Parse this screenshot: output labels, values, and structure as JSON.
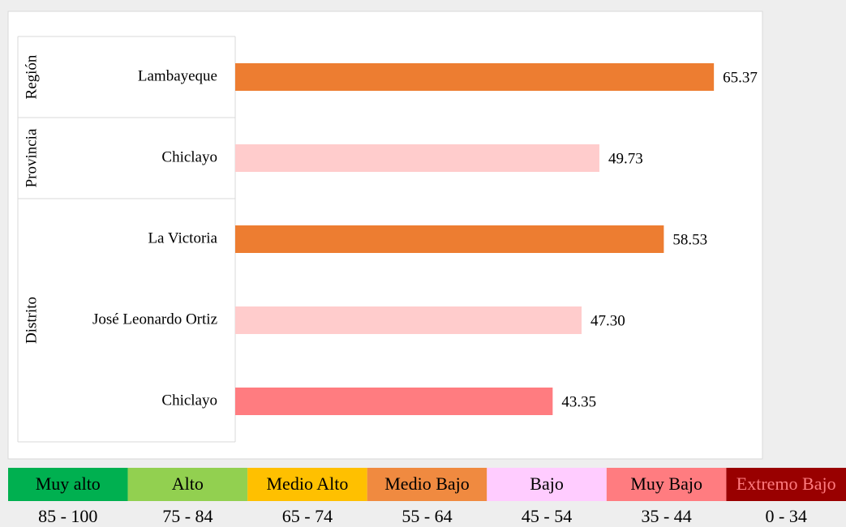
{
  "chart_data": {
    "type": "bar",
    "orientation": "horizontal",
    "categories": [
      "Lambayeque",
      "Chiclayo",
      "La Victoria",
      "José Leonardo Ortiz",
      "Chiclayo"
    ],
    "groups": [
      {
        "label": "Región",
        "size": 1
      },
      {
        "label": "Provincia",
        "size": 1
      },
      {
        "label": "Distrito",
        "size": 3
      }
    ],
    "values": [
      65.37,
      49.73,
      58.53,
      47.3,
      43.35
    ],
    "value_labels": [
      "65.37",
      "49.73",
      "58.53",
      "47.30",
      "43.35"
    ],
    "colors": [
      "#ed7d31",
      "#ffcccc",
      "#ed7d31",
      "#ffcccc",
      "#ff7c80"
    ],
    "xlim": [
      0,
      72
    ]
  },
  "legend_scale": [
    {
      "label": "Muy alto",
      "range": "85 - 100",
      "color": "#00b050",
      "text_color": "#000000"
    },
    {
      "label": "Alto",
      "range": "75 - 84",
      "color": "#92d050",
      "text_color": "#000000"
    },
    {
      "label": "Medio Alto",
      "range": "65 - 74",
      "color": "#ffc000",
      "text_color": "#000000"
    },
    {
      "label": "Medio Bajo",
      "range": "55 - 64",
      "color": "#f08a40",
      "text_color": "#000000"
    },
    {
      "label": "Bajo",
      "range": "45 - 54",
      "color": "#ffccff",
      "text_color": "#000000"
    },
    {
      "label": "Muy Bajo",
      "range": "35 - 44",
      "color": "#ff7c80",
      "text_color": "#000000"
    },
    {
      "label": "Extremo Bajo",
      "range": "0 - 34",
      "color": "#990000",
      "text_color": "#ff7c80"
    }
  ]
}
